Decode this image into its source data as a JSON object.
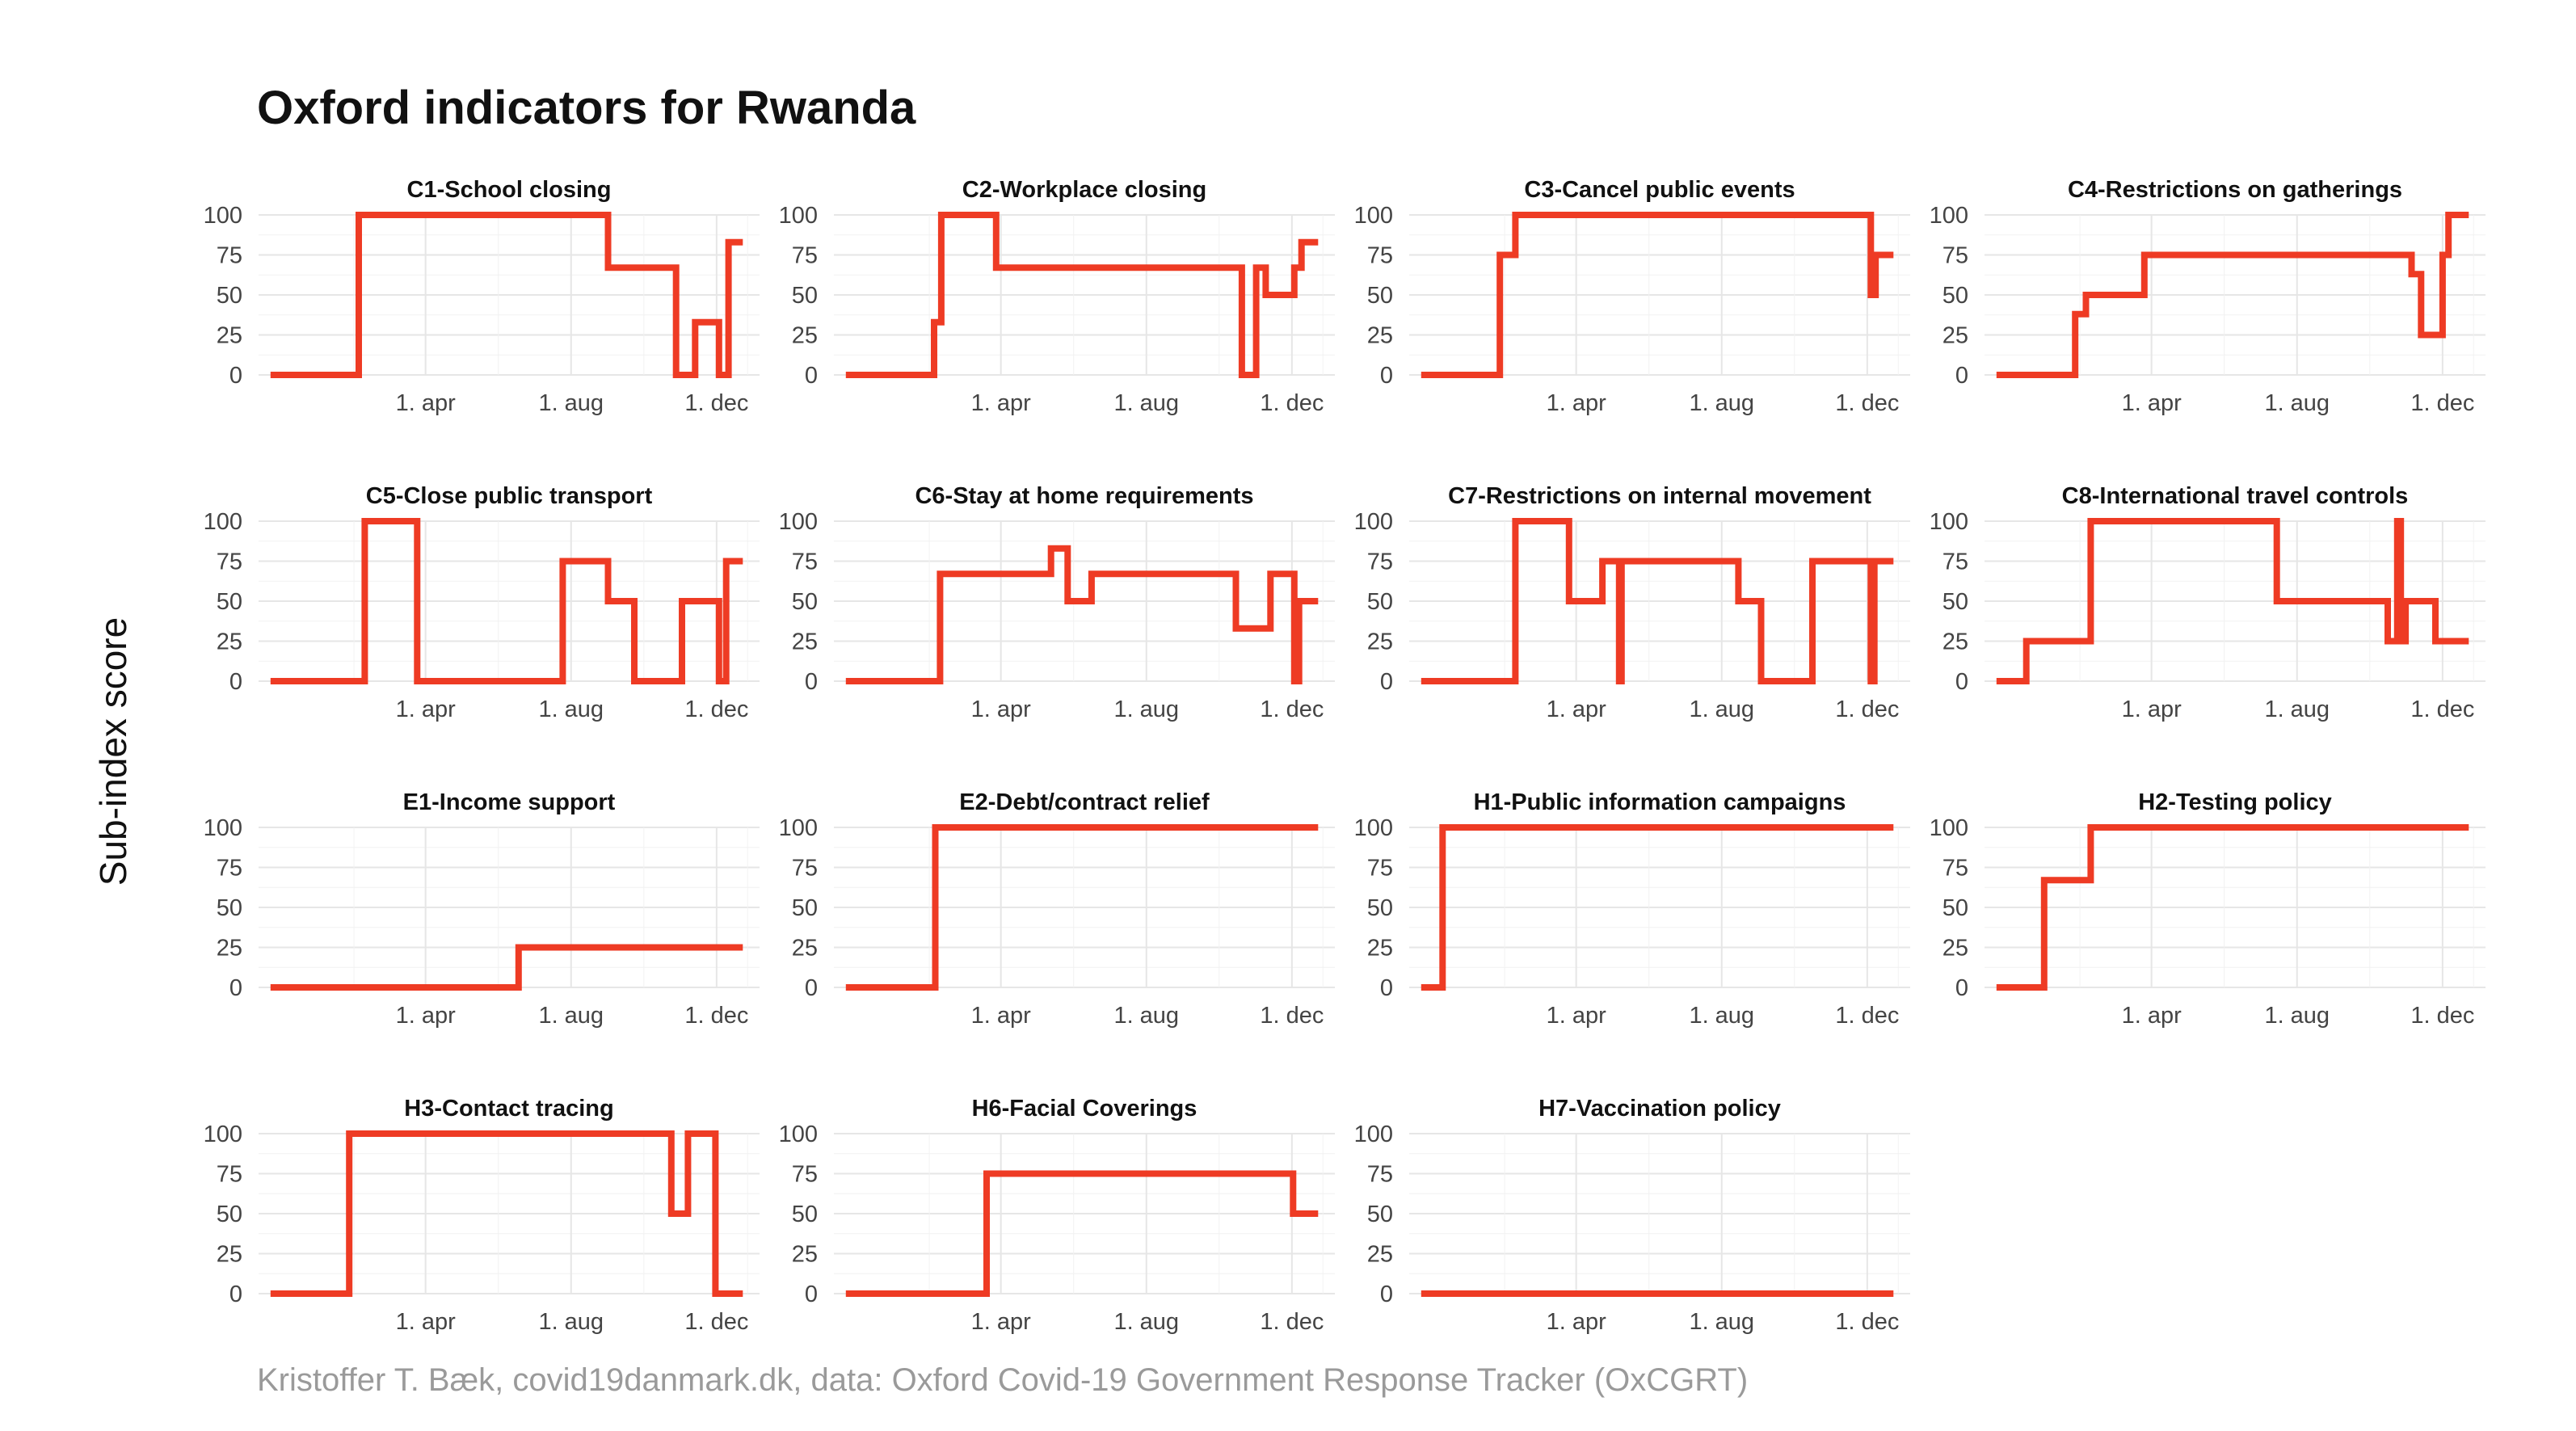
{
  "title": "Oxford indicators for Rwanda",
  "y_axis_title": "Sub-index score",
  "caption": "Kristoffer T. Bæk, covid19danmark.dk, data: Oxford Covid-19 Government Response Tracker (OxCGRT)",
  "colors": {
    "line": "#EE3B24",
    "grid": "#E6E6E6",
    "text": "#444444"
  },
  "chart_data": [
    {
      "type": "line",
      "title": "C1-School closing",
      "ylim": [
        0,
        100
      ],
      "yticks": [
        0,
        25,
        50,
        75,
        100
      ],
      "xticks": [
        "1. apr",
        "1. aug",
        "1. dec"
      ],
      "x": [
        0,
        74,
        74,
        283,
        283,
        340,
        340,
        356,
        356,
        376,
        376,
        384,
        384,
        396
      ],
      "values": [
        0,
        0,
        100,
        100,
        67,
        67,
        0,
        0,
        33,
        33,
        0,
        0,
        83,
        83
      ]
    },
    {
      "type": "line",
      "title": "C2-Workplace closing",
      "ylim": [
        0,
        100
      ],
      "yticks": [
        0,
        25,
        50,
        75,
        100
      ],
      "xticks": [
        "1. apr",
        "1. aug",
        "1. dec"
      ],
      "x": [
        0,
        74,
        74,
        80,
        80,
        126,
        126,
        332,
        332,
        344,
        344,
        352,
        352,
        376,
        376,
        382,
        382,
        396
      ],
      "values": [
        0,
        0,
        33,
        33,
        100,
        100,
        67,
        67,
        0,
        0,
        67,
        67,
        50,
        50,
        67,
        67,
        83,
        83
      ]
    },
    {
      "type": "line",
      "title": "C3-Cancel public events",
      "ylim": [
        0,
        100
      ],
      "yticks": [
        0,
        25,
        50,
        75,
        100
      ],
      "xticks": [
        "1. apr",
        "1. aug",
        "1. dec"
      ],
      "x": [
        0,
        66,
        66,
        79,
        79,
        377,
        377,
        381,
        381,
        396
      ],
      "values": [
        0,
        0,
        75,
        75,
        100,
        100,
        50,
        50,
        75,
        75
      ]
    },
    {
      "type": "line",
      "title": "C4-Restrictions on gatherings",
      "ylim": [
        0,
        100
      ],
      "yticks": [
        0,
        25,
        50,
        75,
        100
      ],
      "xticks": [
        "1. apr",
        "1. aug",
        "1. dec"
      ],
      "x": [
        0,
        66,
        66,
        75,
        75,
        124,
        124,
        348,
        348,
        356,
        356,
        374,
        374,
        379,
        379,
        396
      ],
      "values": [
        0,
        0,
        38,
        38,
        50,
        50,
        75,
        75,
        63,
        63,
        25,
        25,
        75,
        75,
        100,
        100
      ]
    },
    {
      "type": "line",
      "title": "C5-Close public transport",
      "ylim": [
        0,
        100
      ],
      "yticks": [
        0,
        25,
        50,
        75,
        100
      ],
      "xticks": [
        "1. apr",
        "1. aug",
        "1. dec"
      ],
      "x": [
        0,
        79,
        79,
        123,
        123,
        245,
        245,
        283,
        283,
        305,
        305,
        345,
        345,
        352,
        352,
        376,
        376,
        382,
        382,
        396
      ],
      "values": [
        0,
        0,
        100,
        100,
        0,
        0,
        75,
        75,
        50,
        50,
        0,
        0,
        50,
        50,
        50,
        50,
        0,
        0,
        75,
        75
      ]
    },
    {
      "type": "line",
      "title": "C6-Stay at home requirements",
      "ylim": [
        0,
        100
      ],
      "yticks": [
        0,
        25,
        50,
        75,
        100
      ],
      "xticks": [
        "1. apr",
        "1. aug",
        "1. dec"
      ],
      "x": [
        0,
        79,
        79,
        172,
        172,
        186,
        186,
        206,
        206,
        327,
        327,
        356,
        356,
        376,
        376,
        380,
        380,
        396
      ],
      "values": [
        0,
        0,
        67,
        67,
        83,
        83,
        50,
        50,
        67,
        67,
        33,
        33,
        67,
        67,
        0,
        0,
        50,
        50
      ]
    },
    {
      "type": "line",
      "title": "C7-Restrictions on internal movement",
      "ylim": [
        0,
        100
      ],
      "yticks": [
        0,
        25,
        50,
        75,
        100
      ],
      "xticks": [
        "1. apr",
        "1. aug",
        "1. dec"
      ],
      "x": [
        0,
        79,
        79,
        124,
        124,
        152,
        152,
        166,
        166,
        168,
        168,
        175,
        175,
        266,
        266,
        285,
        285,
        328,
        328,
        377,
        377,
        380,
        380,
        396
      ],
      "values": [
        0,
        0,
        100,
        100,
        50,
        50,
        75,
        75,
        0,
        0,
        75,
        75,
        75,
        75,
        50,
        50,
        0,
        0,
        75,
        75,
        0,
        0,
        75,
        75
      ]
    },
    {
      "type": "line",
      "title": "C8-International travel controls",
      "ylim": [
        0,
        100
      ],
      "yticks": [
        0,
        25,
        50,
        75,
        100
      ],
      "xticks": [
        "1. apr",
        "1. aug",
        "1. dec"
      ],
      "x": [
        0,
        25,
        25,
        79,
        79,
        235,
        235,
        328,
        328,
        336,
        336,
        339,
        339,
        343,
        343,
        348,
        348,
        368,
        368,
        396
      ],
      "values": [
        0,
        0,
        25,
        25,
        100,
        100,
        50,
        50,
        25,
        25,
        100,
        100,
        25,
        25,
        50,
        50,
        50,
        50,
        25,
        25
      ]
    },
    {
      "type": "line",
      "title": "E1-Income support",
      "ylim": [
        0,
        100
      ],
      "yticks": [
        0,
        25,
        50,
        75,
        100
      ],
      "xticks": [
        "1. apr",
        "1. aug",
        "1. dec"
      ],
      "x": [
        0,
        208,
        208,
        396
      ],
      "values": [
        0,
        0,
        25,
        25
      ]
    },
    {
      "type": "line",
      "title": "E2-Debt/contract relief",
      "ylim": [
        0,
        100
      ],
      "yticks": [
        0,
        25,
        50,
        75,
        100
      ],
      "xticks": [
        "1. apr",
        "1. aug",
        "1. dec"
      ],
      "x": [
        0,
        75,
        75,
        396
      ],
      "values": [
        0,
        0,
        100,
        100
      ]
    },
    {
      "type": "line",
      "title": "H1-Public information campaigns",
      "ylim": [
        0,
        100
      ],
      "yticks": [
        0,
        25,
        50,
        75,
        100
      ],
      "xticks": [
        "1. apr",
        "1. aug",
        "1. dec"
      ],
      "x": [
        0,
        18,
        18,
        396
      ],
      "values": [
        0,
        0,
        100,
        100
      ]
    },
    {
      "type": "line",
      "title": "H2-Testing policy",
      "ylim": [
        0,
        100
      ],
      "yticks": [
        0,
        25,
        50,
        75,
        100
      ],
      "xticks": [
        "1. apr",
        "1. aug",
        "1. dec"
      ],
      "x": [
        0,
        40,
        40,
        79,
        79,
        396
      ],
      "values": [
        0,
        0,
        67,
        67,
        100,
        100
      ]
    },
    {
      "type": "line",
      "title": "H3-Contact tracing",
      "ylim": [
        0,
        100
      ],
      "yticks": [
        0,
        25,
        50,
        75,
        100
      ],
      "xticks": [
        "1. apr",
        "1. aug",
        "1. dec"
      ],
      "x": [
        0,
        66,
        66,
        336,
        336,
        350,
        350,
        373,
        373,
        396
      ],
      "values": [
        0,
        0,
        100,
        100,
        50,
        50,
        100,
        100,
        0,
        0
      ]
    },
    {
      "type": "line",
      "title": "H6-Facial Coverings",
      "ylim": [
        0,
        100
      ],
      "yticks": [
        0,
        25,
        50,
        75,
        100
      ],
      "xticks": [
        "1. apr",
        "1. aug",
        "1. dec"
      ],
      "x": [
        0,
        118,
        118,
        375,
        375,
        396
      ],
      "values": [
        0,
        0,
        75,
        75,
        50,
        50
      ]
    },
    {
      "type": "line",
      "title": "H7-Vaccination policy",
      "ylim": [
        0,
        100
      ],
      "yticks": [
        0,
        25,
        50,
        75,
        100
      ],
      "xticks": [
        "1. apr",
        "1. aug",
        "1. dec"
      ],
      "x": [
        0,
        396
      ],
      "values": [
        0,
        0
      ]
    }
  ]
}
